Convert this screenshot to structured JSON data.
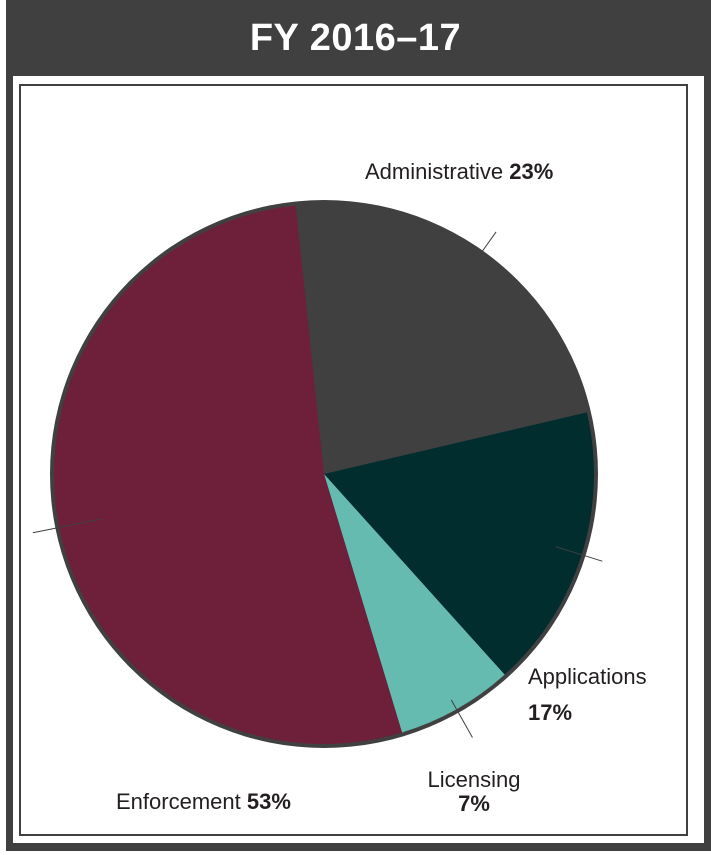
{
  "header": {
    "title": "FY 2016–17"
  },
  "colors": {
    "frame": "#404041",
    "Administrative": "#404041",
    "Applications": "#022d2f",
    "Licensing": "#65bbaf",
    "Enforcement": "#6e1f3a"
  },
  "chart_data": {
    "type": "pie",
    "title": "FY 2016–17",
    "slices": [
      {
        "label": "Administrative",
        "value": 23,
        "value_label": "23%"
      },
      {
        "label": "Applications",
        "value": 17,
        "value_label": "17%"
      },
      {
        "label": "Licensing",
        "value": 7,
        "value_label": "7%"
      },
      {
        "label": "Enforcement",
        "value": 53,
        "value_label": "53%"
      }
    ]
  }
}
